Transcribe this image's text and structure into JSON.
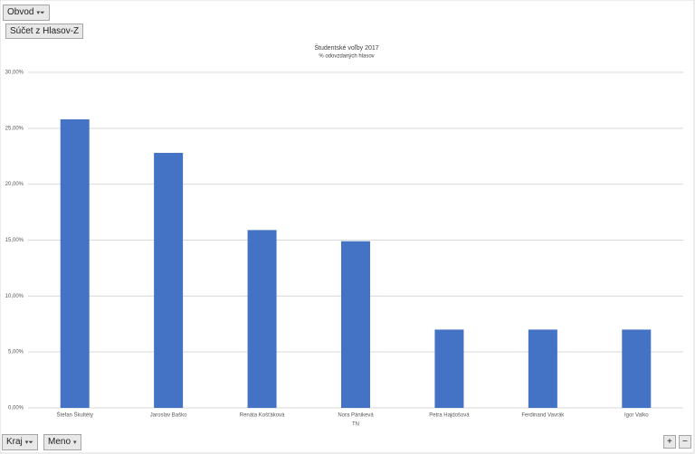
{
  "ui": {
    "report_filter": "Obvod",
    "value_field": "Súčet z Hlasov-Z",
    "axis_fields": [
      "Kraj",
      "Meno"
    ]
  },
  "chart_data": {
    "type": "bar",
    "title": "Študentské voľby 2017",
    "subtitle": "% odovzdaných hlasov",
    "x_label": "TN",
    "categories": [
      "Štefan Škultéty",
      "Jaroslav Baško",
      "Renáta Košťáková",
      "Nora Pánikevá",
      "Petra Hajdošová",
      "Ferdinand Vavrák",
      "Igor Valko"
    ],
    "values": [
      25.8,
      22.8,
      15.9,
      14.9,
      7.0,
      7.0,
      7.0
    ],
    "color": "#4472c4",
    "ylim": [
      0,
      30
    ],
    "yticks": [
      {
        "value": 0,
        "label": "0,00%"
      },
      {
        "value": 5,
        "label": "5,00%"
      },
      {
        "value": 10,
        "label": "10,00%"
      },
      {
        "value": 15,
        "label": "15,00%"
      },
      {
        "value": 20,
        "label": "20,00%"
      },
      {
        "value": 25,
        "label": "25,00%"
      },
      {
        "value": 30,
        "label": "30,00%"
      }
    ],
    "grid": true
  }
}
